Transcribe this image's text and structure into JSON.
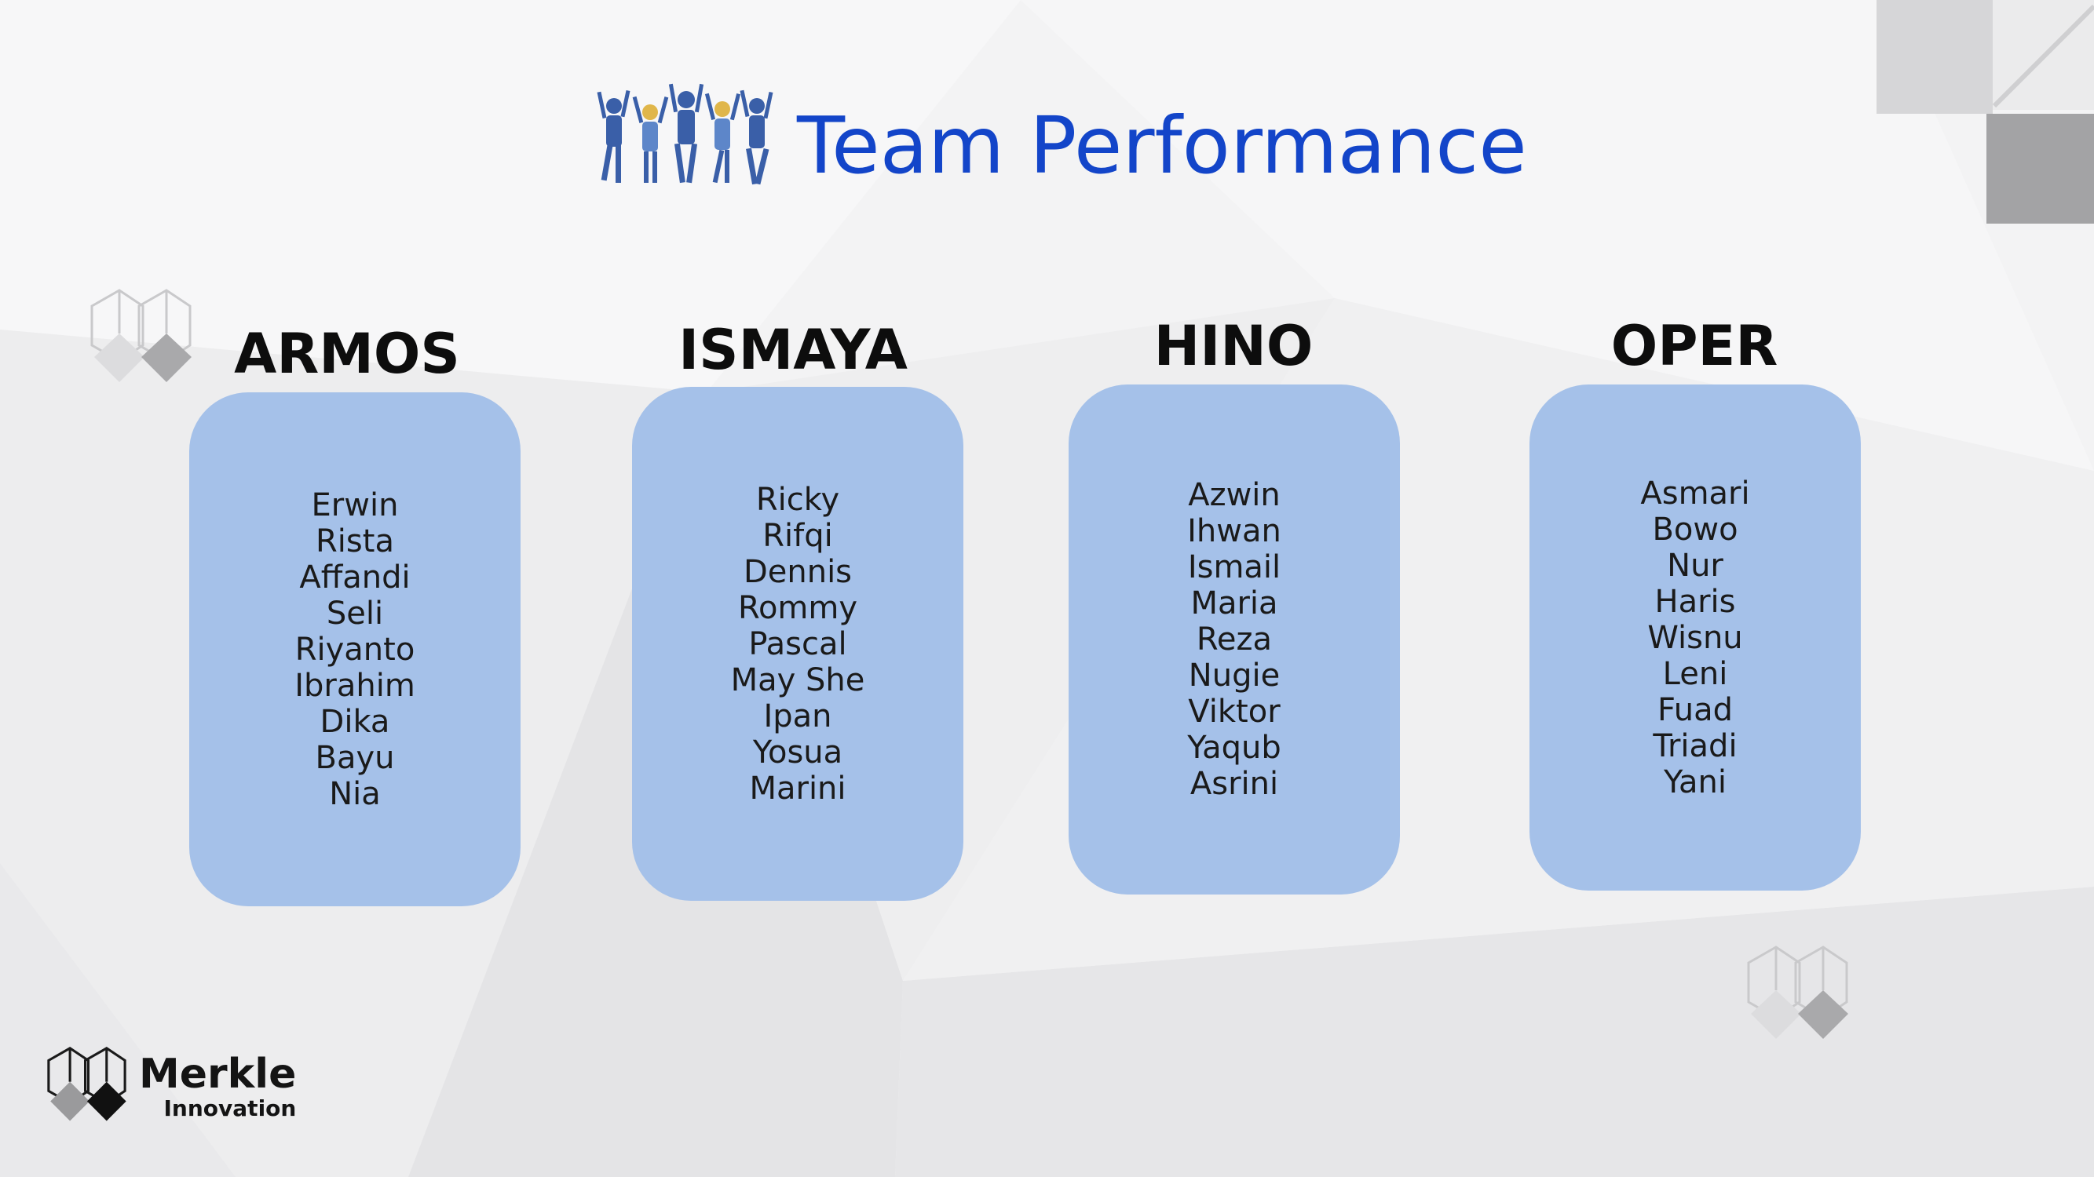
{
  "slide": {
    "title": "Team Performance",
    "accent_color": "#1345c9",
    "card_color": "#a5c1e9",
    "title_icon": "celebrating-team-icon"
  },
  "teams": [
    {
      "name": "ARMOS",
      "members": [
        "Erwin",
        "Rista",
        "Affandi",
        "Seli",
        "Riyanto",
        "Ibrahim",
        "Dika",
        "Bayu",
        "Nia"
      ]
    },
    {
      "name": "ISMAYA",
      "members": [
        "Ricky",
        "Rifqi",
        "Dennis",
        "Rommy",
        "Pascal",
        "May She",
        "Ipan",
        "Yosua",
        "Marini"
      ]
    },
    {
      "name": "HINO",
      "members": [
        "Azwin",
        "Ihwan",
        "Ismail",
        "Maria",
        "Reza",
        "Nugie",
        "Viktor",
        "Yaqub",
        "Asrini"
      ]
    },
    {
      "name": "OPER",
      "members": [
        "Asmari",
        "Bowo",
        "Nur",
        "Haris",
        "Wisnu",
        "Leni",
        "Fuad",
        "Triadi",
        "Yani"
      ]
    }
  ],
  "logo": {
    "name": "Merkle",
    "subtitle": "Innovation",
    "icon": "merkle-cube-logo-icon"
  }
}
